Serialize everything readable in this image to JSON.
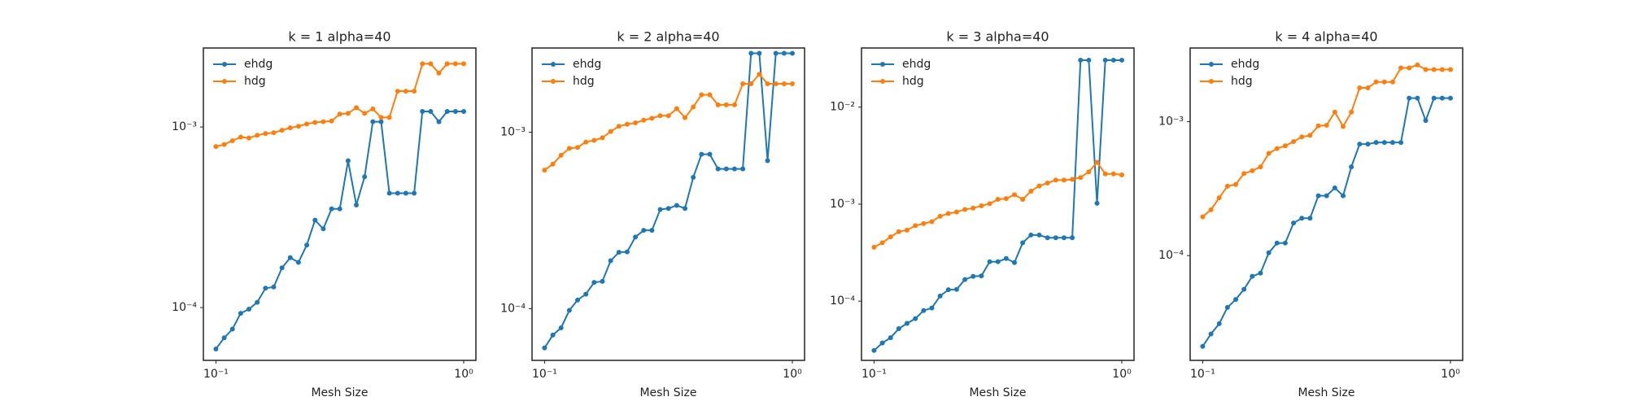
{
  "chart_data": [
    {
      "type": "line",
      "title": "k = 1 alpha=40",
      "xlabel": "Mesh Size",
      "xscale": "log",
      "yscale": "log",
      "legend": "upper left",
      "x": [
        0.1,
        0.108,
        0.1166,
        0.1259,
        0.1359,
        0.1468,
        0.1585,
        0.1711,
        0.1848,
        0.1995,
        0.2154,
        0.2326,
        0.2512,
        0.2712,
        0.2929,
        0.3162,
        0.3415,
        0.3687,
        0.3981,
        0.4299,
        0.4642,
        0.5012,
        0.5412,
        0.5843,
        0.631,
        0.6813,
        0.7356,
        0.7943,
        0.8577,
        0.9261,
        1.0
      ],
      "xlim": [
        0.089,
        1.12
      ],
      "xticks": [
        {
          "value": 0.1,
          "label": "10⁻¹"
        },
        {
          "value": 1,
          "label": "10⁰"
        }
      ],
      "ylim": [
        5.1e-05,
        0.00274
      ],
      "yticks": [
        {
          "value": 0.0001,
          "label": "10⁻⁴"
        },
        {
          "value": 0.001,
          "label": "10⁻³"
        }
      ],
      "series": [
        {
          "name": "ehdg",
          "color": "#1f77b4",
          "values": [
            5.9e-05,
            6.8e-05,
            7.6e-05,
            9.3e-05,
            9.8e-05,
            0.000107,
            0.000128,
            0.00013,
            0.000166,
            0.000189,
            0.000178,
            0.000222,
            0.000305,
            0.000273,
            0.000352,
            0.000352,
            0.00065,
            0.00037,
            0.00053,
            0.00107,
            0.00107,
            0.00043,
            0.00043,
            0.00043,
            0.00043,
            0.00122,
            0.00122,
            0.00107,
            0.00122,
            0.00122,
            0.00122
          ]
        },
        {
          "name": "hdg",
          "color": "#ff7f0e",
          "values": [
            0.00078,
            0.0008,
            0.00084,
            0.00088,
            0.00087,
            0.0009,
            0.00092,
            0.00093,
            0.00096,
            0.00099,
            0.00101,
            0.00104,
            0.00106,
            0.00107,
            0.00108,
            0.00118,
            0.00119,
            0.00128,
            0.00119,
            0.00126,
            0.00113,
            0.00113,
            0.00158,
            0.00158,
            0.00158,
            0.00224,
            0.00224,
            0.00199,
            0.00224,
            0.00224,
            0.00224
          ]
        }
      ]
    },
    {
      "type": "line",
      "title": "k = 2 alpha=40",
      "xlabel": "Mesh Size",
      "xscale": "log",
      "yscale": "log",
      "legend": "upper left",
      "x": [
        0.1,
        0.108,
        0.1166,
        0.1259,
        0.1359,
        0.1468,
        0.1585,
        0.1711,
        0.1848,
        0.1995,
        0.2154,
        0.2326,
        0.2512,
        0.2712,
        0.2929,
        0.3162,
        0.3415,
        0.3687,
        0.3981,
        0.4299,
        0.4642,
        0.5012,
        0.5412,
        0.5843,
        0.631,
        0.6813,
        0.7356,
        0.7943,
        0.8577,
        0.9261,
        1.0
      ],
      "xlim": [
        0.089,
        1.12
      ],
      "xticks": [
        {
          "value": 0.1,
          "label": "10⁻¹"
        },
        {
          "value": 1,
          "label": "10⁰"
        }
      ],
      "ylim": [
        5.1e-05,
        0.003
      ],
      "yticks": [
        {
          "value": 0.0001,
          "label": "10⁻⁴"
        },
        {
          "value": 0.001,
          "label": "10⁻³"
        }
      ],
      "series": [
        {
          "name": "ehdg",
          "color": "#1f77b4",
          "values": [
            6e-05,
            7.1e-05,
            7.8e-05,
            9.8e-05,
            0.000112,
            0.000121,
            0.000141,
            0.000143,
            0.000187,
            0.000209,
            0.00021,
            0.000255,
            0.000278,
            0.000278,
            0.000365,
            0.00037,
            0.000385,
            0.00037,
            0.000555,
            0.00075,
            0.00075,
            0.00062,
            0.00062,
            0.00062,
            0.00062,
            0.0028,
            0.0028,
            0.00069,
            0.0028,
            0.0028,
            0.0028
          ]
        },
        {
          "name": "hdg",
          "color": "#ff7f0e",
          "values": [
            0.00061,
            0.00066,
            0.00074,
            0.00081,
            0.00082,
            0.00088,
            0.0009,
            0.00093,
            0.00101,
            0.00108,
            0.00111,
            0.00113,
            0.00117,
            0.0012,
            0.00124,
            0.00124,
            0.00136,
            0.00121,
            0.00139,
            0.00163,
            0.00163,
            0.00143,
            0.00143,
            0.00143,
            0.00188,
            0.00188,
            0.00213,
            0.00188,
            0.00188,
            0.00188,
            0.00188
          ]
        }
      ]
    },
    {
      "type": "line",
      "title": "k = 3 alpha=40",
      "xlabel": "Mesh Size",
      "xscale": "log",
      "yscale": "log",
      "legend": "upper left",
      "x": [
        0.1,
        0.108,
        0.1166,
        0.1259,
        0.1359,
        0.1468,
        0.1585,
        0.1711,
        0.1848,
        0.1995,
        0.2154,
        0.2326,
        0.2512,
        0.2712,
        0.2929,
        0.3162,
        0.3415,
        0.3687,
        0.3981,
        0.4299,
        0.4642,
        0.5012,
        0.5412,
        0.5843,
        0.631,
        0.6813,
        0.7356,
        0.7943,
        0.8577,
        0.9261,
        1.0
      ],
      "xlim": [
        0.089,
        1.12
      ],
      "xticks": [
        {
          "value": 0.1,
          "label": "10⁻¹"
        },
        {
          "value": 1,
          "label": "10⁰"
        }
      ],
      "ylim": [
        2.45e-05,
        0.0407
      ],
      "yticks": [
        {
          "value": 0.0001,
          "label": "10⁻⁴"
        },
        {
          "value": 0.001,
          "label": "10⁻³"
        },
        {
          "value": 0.01,
          "label": "10⁻²"
        }
      ],
      "series": [
        {
          "name": "ehdg",
          "color": "#1f77b4",
          "values": [
            3.1e-05,
            3.7e-05,
            4.2e-05,
            5.2e-05,
            5.9e-05,
            6.6e-05,
            8e-05,
            8.5e-05,
            0.000113,
            0.000131,
            0.000132,
            0.000167,
            0.00018,
            0.000182,
            0.000255,
            0.000255,
            0.000275,
            0.00025,
            0.0004,
            0.00048,
            0.00048,
            0.00045,
            0.00045,
            0.00045,
            0.00045,
            0.0305,
            0.0305,
            0.00102,
            0.0305,
            0.0305,
            0.0305
          ]
        },
        {
          "name": "hdg",
          "color": "#ff7f0e",
          "values": [
            0.00036,
            0.0004,
            0.00046,
            0.00052,
            0.00054,
            0.0006,
            0.00063,
            0.00066,
            0.00075,
            0.0008,
            0.00083,
            0.00088,
            0.00091,
            0.00096,
            0.00101,
            0.00112,
            0.00114,
            0.00125,
            0.00112,
            0.00136,
            0.00154,
            0.00165,
            0.00177,
            0.00177,
            0.0018,
            0.00188,
            0.00215,
            0.0027,
            0.00205,
            0.00205,
            0.002
          ]
        }
      ]
    },
    {
      "type": "line",
      "title": "k = 4 alpha=40",
      "xlabel": "Mesh Size",
      "xscale": "log",
      "yscale": "log",
      "legend": "upper left",
      "x": [
        0.1,
        0.108,
        0.1166,
        0.1259,
        0.1359,
        0.1468,
        0.1585,
        0.1711,
        0.1848,
        0.1995,
        0.2154,
        0.2326,
        0.2512,
        0.2712,
        0.2929,
        0.3162,
        0.3415,
        0.3687,
        0.3981,
        0.4299,
        0.4642,
        0.5012,
        0.5412,
        0.5843,
        0.631,
        0.6813,
        0.7356,
        0.7943,
        0.8577,
        0.9261,
        1.0
      ],
      "xlim": [
        0.089,
        1.12
      ],
      "xticks": [
        {
          "value": 0.1,
          "label": "10⁻¹"
        },
        {
          "value": 1,
          "label": "10⁰"
        }
      ],
      "ylim": [
        1.65e-05,
        0.00355
      ],
      "yticks": [
        {
          "value": 0.0001,
          "label": "10⁻⁴"
        },
        {
          "value": 0.001,
          "label": "10⁻³"
        }
      ],
      "series": [
        {
          "name": "ehdg",
          "color": "#1f77b4",
          "values": [
            2.1e-05,
            2.6e-05,
            3.1e-05,
            4.1e-05,
            4.7e-05,
            5.6e-05,
            7e-05,
            7.4e-05,
            0.000105,
            0.000124,
            0.000124,
            0.000175,
            0.00019,
            0.00019,
            0.00028,
            0.00028,
            0.00032,
            0.00028,
            0.00046,
            0.00068,
            0.00068,
            0.0007,
            0.0007,
            0.0007,
            0.0007,
            0.0015,
            0.0015,
            0.00102,
            0.0015,
            0.0015,
            0.0015
          ]
        },
        {
          "name": "hdg",
          "color": "#ff7f0e",
          "values": [
            0.000195,
            0.00022,
            0.00027,
            0.00033,
            0.00034,
            0.00041,
            0.00043,
            0.00046,
            0.00058,
            0.00063,
            0.00066,
            0.00071,
            0.00077,
            0.00079,
            0.00093,
            0.00094,
            0.00118,
            0.00092,
            0.00118,
            0.00179,
            0.00179,
            0.00198,
            0.00198,
            0.00198,
            0.00252,
            0.00252,
            0.00265,
            0.00245,
            0.00245,
            0.00245,
            0.00245
          ]
        }
      ]
    }
  ]
}
